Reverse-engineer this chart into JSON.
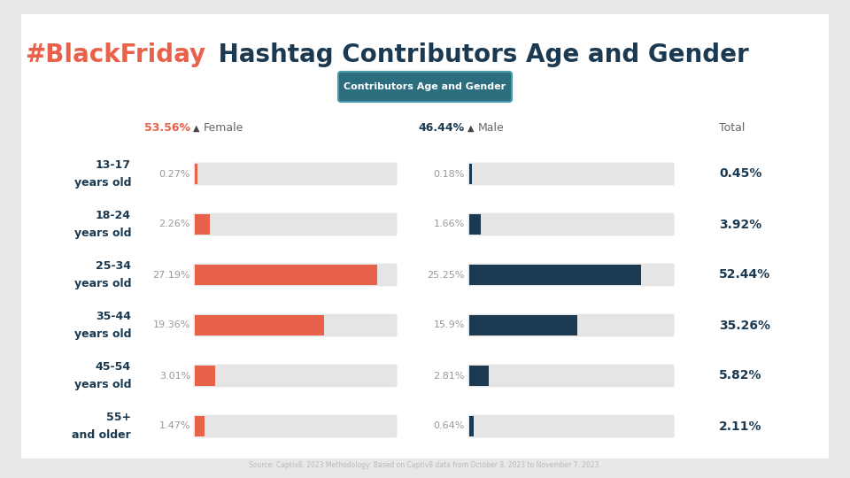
{
  "title_black": " Hashtag Contributors Age and Gender",
  "title_red": "#BlackFriday",
  "subtitle_text": "Contributors Age and Gender",
  "subtitle_bg": "#2d6e7e",
  "subtitle_color": "#ffffff",
  "subtitle_border": "#4a9aaa",
  "female_pct": "53.56%",
  "male_pct": "46.44%",
  "female_color": "#e8614a",
  "male_color": "#1b3a52",
  "total_label": "Total",
  "source_text": "Source: Captiv8, 2023 Methodology: Based on Captiv8 data from October 8, 2023 to November 7, 2023.",
  "age_groups": [
    "13-17\nyears old",
    "18-24\nyears old",
    "25-34\nyears old",
    "35-44\nyears old",
    "45-54\nyears old",
    "55+\nand older"
  ],
  "female_values": [
    0.27,
    2.26,
    27.19,
    19.36,
    3.01,
    1.47
  ],
  "male_values": [
    0.18,
    1.66,
    25.25,
    15.9,
    2.81,
    0.64
  ],
  "total_values": [
    "0.45%",
    "3.92%",
    "52.44%",
    "35.26%",
    "5.82%",
    "2.11%"
  ],
  "female_labels": [
    "0.27%",
    "2.26%",
    "27.19%",
    "19.36%",
    "3.01%",
    "1.47%"
  ],
  "male_labels": [
    "0.18%",
    "1.66%",
    "25.25%",
    "15.9%",
    "2.81%",
    "0.64%"
  ],
  "bar_max": 30,
  "bg_color": "#e8e8e8",
  "card_color": "#ffffff",
  "label_color": "#1b3a52",
  "pct_color_female": "#e8614a",
  "pct_color_male": "#1b3a52",
  "bar_bg_color": "#e5e5e5",
  "title_color": "#1b3a52",
  "title_fontsize": 20,
  "age_label_fontsize": 9,
  "value_label_fontsize": 8,
  "total_fontsize": 10,
  "header_fontsize": 9
}
